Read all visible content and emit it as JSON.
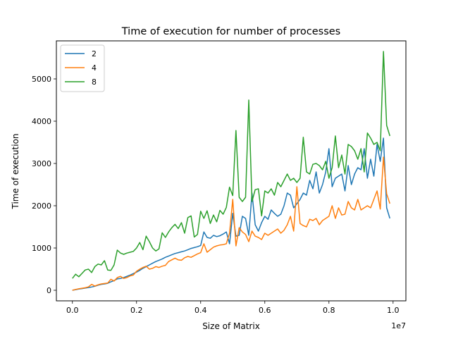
{
  "chart_data": {
    "type": "line",
    "title": "Time of execution for number of processes",
    "xlabel": "Size of Matrix",
    "ylabel": "Time of execution",
    "x_offset_label": "1e7",
    "xlim": [
      -0.05,
      1.04
    ],
    "ylim": [
      -250,
      5900
    ],
    "x_scale_note": "x values in units of 1e7",
    "x_ticks": [
      0.0,
      0.2,
      0.4,
      0.6,
      0.8,
      1.0
    ],
    "x_tick_labels": [
      "0.0",
      "0.2",
      "0.4",
      "0.6",
      "0.8",
      "1.0"
    ],
    "y_ticks": [
      0,
      1000,
      2000,
      3000,
      4000,
      5000
    ],
    "y_tick_labels": [
      "0",
      "1000",
      "2000",
      "3000",
      "4000",
      "5000"
    ],
    "grid": false,
    "legend_position": "top-left",
    "x": [
      0.0,
      0.01,
      0.02,
      0.03,
      0.04,
      0.05,
      0.06,
      0.07,
      0.08,
      0.09,
      0.1,
      0.11,
      0.12,
      0.13,
      0.14,
      0.15,
      0.16,
      0.17,
      0.18,
      0.19,
      0.2,
      0.21,
      0.22,
      0.23,
      0.24,
      0.25,
      0.26,
      0.27,
      0.28,
      0.29,
      0.3,
      0.31,
      0.32,
      0.33,
      0.34,
      0.35,
      0.36,
      0.37,
      0.38,
      0.39,
      0.4,
      0.41,
      0.42,
      0.43,
      0.44,
      0.45,
      0.46,
      0.47,
      0.48,
      0.49,
      0.5,
      0.51,
      0.52,
      0.53,
      0.54,
      0.55,
      0.56,
      0.57,
      0.58,
      0.59,
      0.6,
      0.61,
      0.62,
      0.63,
      0.64,
      0.65,
      0.66,
      0.67,
      0.68,
      0.69,
      0.7,
      0.71,
      0.72,
      0.73,
      0.74,
      0.75,
      0.76,
      0.77,
      0.78,
      0.79,
      0.8,
      0.81,
      0.82,
      0.83,
      0.84,
      0.85,
      0.86,
      0.87,
      0.88,
      0.89,
      0.9,
      0.91,
      0.92,
      0.93,
      0.94,
      0.95,
      0.96,
      0.97,
      0.98,
      0.99
    ],
    "series": [
      {
        "name": "2",
        "color": "#1f77b4",
        "values": [
          0,
          15,
          28,
          40,
          52,
          65,
          78,
          95,
          120,
          140,
          150,
          165,
          200,
          230,
          270,
          280,
          300,
          330,
          360,
          395,
          430,
          470,
          520,
          560,
          600,
          640,
          680,
          710,
          740,
          780,
          810,
          840,
          870,
          890,
          910,
          930,
          960,
          990,
          1010,
          1030,
          1060,
          1380,
          1250,
          1230,
          1300,
          1270,
          1290,
          1330,
          1380,
          1100,
          1820,
          1280,
          1300,
          1750,
          1700,
          1300,
          2300,
          1550,
          1400,
          1600,
          1750,
          1680,
          1900,
          1820,
          1750,
          1800,
          2000,
          2300,
          2250,
          1950,
          2050,
          2150,
          2300,
          2250,
          2600,
          2400,
          2800,
          2300,
          2500,
          2800,
          3350,
          2450,
          2650,
          2700,
          2750,
          2350,
          2950,
          2500,
          2750,
          2900,
          2850,
          3350,
          2650,
          3100,
          2700,
          3450,
          3050,
          3600,
          1950,
          1700
        ]
      },
      {
        "name": "4",
        "color": "#ff7f0e",
        "values": [
          0,
          20,
          35,
          48,
          60,
          80,
          140,
          100,
          130,
          150,
          160,
          170,
          260,
          220,
          300,
          330,
          280,
          300,
          340,
          360,
          450,
          500,
          540,
          570,
          500,
          520,
          560,
          540,
          570,
          590,
          680,
          720,
          760,
          720,
          710,
          770,
          800,
          780,
          820,
          860,
          890,
          1100,
          900,
          960,
          1020,
          1050,
          1070,
          1080,
          1100,
          1350,
          2150,
          1050,
          1480,
          1380,
          1320,
          1150,
          1400,
          1280,
          1250,
          1200,
          1350,
          1300,
          1350,
          1400,
          1450,
          1350,
          1420,
          1550,
          1750,
          1400,
          2450,
          1580,
          1530,
          1500,
          1680,
          1650,
          1700,
          1550,
          1650,
          1700,
          1750,
          2000,
          1700,
          1950,
          1780,
          1800,
          2100,
          1950,
          1900,
          2150,
          1900,
          1950,
          2000,
          1950,
          2150,
          2350,
          1920,
          3150,
          2280,
          2050
        ]
      },
      {
        "name": "8",
        "color": "#2ca02c",
        "values": [
          280,
          380,
          320,
          400,
          480,
          500,
          420,
          560,
          620,
          600,
          700,
          480,
          470,
          600,
          950,
          880,
          850,
          880,
          900,
          920,
          1000,
          1130,
          960,
          1280,
          1150,
          1000,
          930,
          980,
          1360,
          1250,
          1380,
          1480,
          1560,
          1460,
          1600,
          1350,
          1720,
          1760,
          1260,
          1320,
          1870,
          1700,
          1880,
          1580,
          1780,
          1620,
          1890,
          1800,
          1960,
          2440,
          2240,
          3780,
          2200,
          2100,
          2200,
          4500,
          2100,
          2380,
          2400,
          1760,
          2350,
          2300,
          2400,
          2250,
          2550,
          2450,
          2600,
          2750,
          2600,
          2650,
          2550,
          2650,
          3620,
          2800,
          2750,
          2980,
          3000,
          2950,
          2850,
          3050,
          2650,
          2900,
          3650,
          2900,
          3200,
          2750,
          3450,
          3400,
          3300,
          3100,
          3350,
          2800,
          3720,
          3600,
          3450,
          3500,
          3300,
          5650,
          3900,
          3650
        ]
      }
    ]
  }
}
